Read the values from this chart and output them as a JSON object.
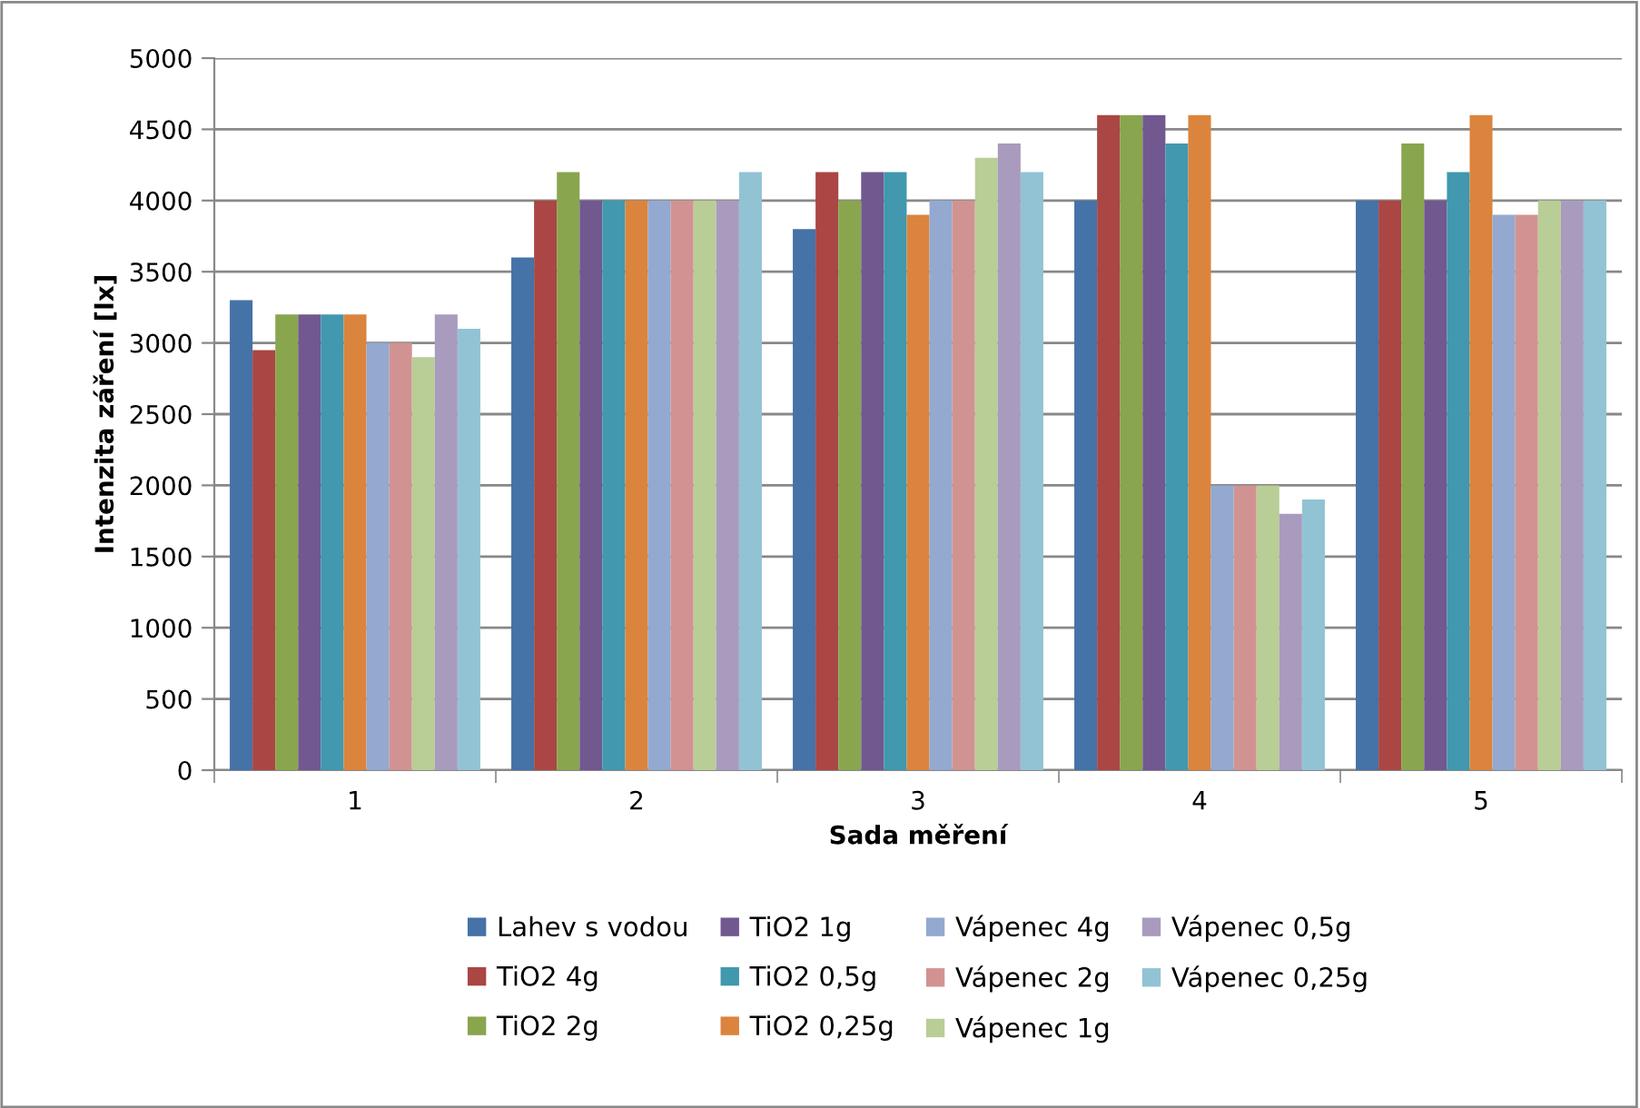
{
  "chart_data": {
    "type": "bar",
    "xlabel": "Sada měření",
    "ylabel": "Intenzita záření [lx]",
    "categories": [
      "1",
      "2",
      "3",
      "4",
      "5"
    ],
    "series": [
      {
        "name": "Lahev s vodou",
        "color": "#4572a7",
        "values": [
          3300,
          3600,
          3800,
          4000,
          4000
        ]
      },
      {
        "name": "TiO2 4g",
        "color": "#aa4643",
        "values": [
          2950,
          4000,
          4200,
          4600,
          4000
        ]
      },
      {
        "name": "TiO2 2g",
        "color": "#89a54e",
        "values": [
          3200,
          4200,
          4000,
          4600,
          4400
        ]
      },
      {
        "name": "TiO2 1g",
        "color": "#71588f",
        "values": [
          3200,
          4000,
          4200,
          4600,
          4000
        ]
      },
      {
        "name": "TiO2 0,5g",
        "color": "#4198af",
        "values": [
          3200,
          4000,
          4200,
          4400,
          4200
        ]
      },
      {
        "name": "TiO2 0,25g",
        "color": "#db843d",
        "values": [
          3200,
          4000,
          3900,
          4600,
          4600
        ]
      },
      {
        "name": "Vápenec 4g",
        "color": "#93a9cf",
        "values": [
          3000,
          4000,
          4000,
          2000,
          3900
        ]
      },
      {
        "name": "Vápenec 2g",
        "color": "#d19392",
        "values": [
          3000,
          4000,
          4000,
          2000,
          3900
        ]
      },
      {
        "name": "Vápenec 1g",
        "color": "#b9cd96",
        "values": [
          2900,
          4000,
          4300,
          2000,
          4000
        ]
      },
      {
        "name": "Vápenec 0,5g",
        "color": "#a99bbd",
        "values": [
          3200,
          4000,
          4400,
          1800,
          4000
        ]
      },
      {
        "name": "Vápenec 0,25g",
        "color": "#92c3d4",
        "values": [
          3100,
          4200,
          4200,
          1900,
          4000
        ]
      }
    ],
    "ylim": [
      0,
      5000
    ],
    "yticks": [
      0,
      500,
      1000,
      1500,
      2000,
      2500,
      3000,
      3500,
      4000,
      4500,
      5000
    ],
    "grid": "y",
    "legend": "bottom"
  }
}
